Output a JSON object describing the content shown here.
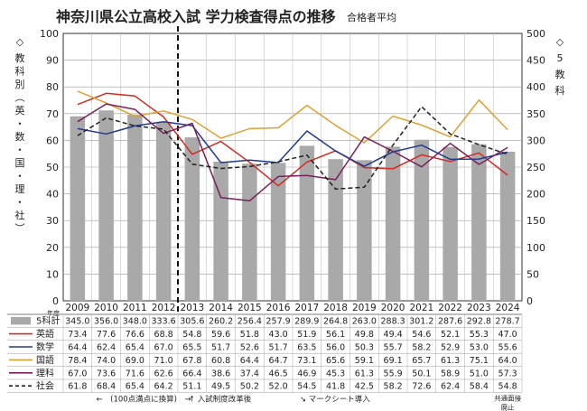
{
  "chart_data": {
    "type": "bar+line",
    "title": "神奈川県公立高校入試 学力検査得点の推移",
    "subtitle": "合格者平均",
    "left_axis_marker": "◇",
    "left_axis_label": [
      "教",
      "科",
      "別",
      "︵",
      "英",
      "・",
      "数",
      "・",
      "国",
      "・",
      "理",
      "・",
      "社",
      "︶"
    ],
    "right_axis_marker": "◇",
    "right_axis_label": [
      "5",
      "教",
      "科"
    ],
    "ylim_left": [
      0,
      100
    ],
    "yticks_left": [
      "0",
      "10",
      "20",
      "30",
      "40",
      "50",
      "60",
      "70",
      "80",
      "90",
      "100"
    ],
    "ylim_right": [
      0,
      500
    ],
    "yticks_right": [
      "0",
      "50",
      "100",
      "150",
      "200",
      "250",
      "300",
      "350",
      "400",
      "450",
      "500"
    ],
    "year_label": "年度",
    "categories": [
      "2009",
      "2010",
      "2011",
      "2012",
      "2013",
      "2014",
      "2015",
      "2016",
      "2017",
      "2018",
      "2019",
      "2020",
      "2021",
      "2022",
      "2023",
      "2024"
    ],
    "bars": {
      "name": "5科計",
      "values": [
        345.0,
        356.0,
        348.0,
        333.6,
        305.6,
        260.2,
        256.4,
        257.9,
        289.9,
        264.8,
        263.0,
        288.3,
        301.2,
        287.6,
        292.8,
        278.7
      ],
      "color": "#a9a9a9"
    },
    "bar_value_labels": [
      "345.0",
      "356.0",
      "348.0",
      "333.6",
      "305.6",
      "260.2",
      "256.4",
      "257.9",
      "289.9",
      "264.8",
      "263.0",
      "288.3",
      "301.2",
      "287.6",
      "292.8",
      "278.7"
    ],
    "series": [
      {
        "name": "英語",
        "color": "#d42a1f",
        "dash": false,
        "values": [
          73.4,
          77.6,
          76.6,
          68.8,
          54.8,
          59.6,
          51.8,
          43.0,
          51.9,
          56.1,
          49.8,
          49.4,
          54.6,
          52.1,
          55.3,
          47.0
        ],
        "labels": [
          "73.4",
          "77.6",
          "76.6",
          "68.8",
          "54.8",
          "59.6",
          "51.8",
          "43.0",
          "51.9",
          "56.1",
          "49.8",
          "49.4",
          "54.6",
          "52.1",
          "55.3",
          "47.0"
        ]
      },
      {
        "name": "数学",
        "color": "#1f3a93",
        "dash": false,
        "values": [
          64.4,
          62.4,
          65.4,
          67.0,
          65.5,
          51.7,
          52.6,
          51.7,
          63.5,
          56.0,
          50.3,
          55.7,
          58.2,
          52.9,
          53.0,
          55.6
        ],
        "labels": [
          "64.4",
          "62.4",
          "65.4",
          "67.0",
          "65.5",
          "51.7",
          "52.6",
          "51.7",
          "63.5",
          "56.0",
          "50.3",
          "55.7",
          "58.2",
          "52.9",
          "53.0",
          "55.6"
        ]
      },
      {
        "name": "国語",
        "color": "#e0a030",
        "dash": false,
        "values": [
          78.4,
          74.0,
          69.0,
          71.0,
          67.8,
          60.8,
          64.4,
          64.7,
          73.1,
          65.6,
          59.1,
          69.1,
          65.7,
          61.3,
          75.1,
          64.0
        ],
        "labels": [
          "78.4",
          "74.0",
          "69.0",
          "71.0",
          "67.8",
          "60.8",
          "64.4",
          "64.7",
          "73.1",
          "65.6",
          "59.1",
          "69.1",
          "65.7",
          "61.3",
          "75.1",
          "64.0"
        ]
      },
      {
        "name": "理科",
        "color": "#7a1f5c",
        "dash": false,
        "values": [
          67.0,
          73.6,
          71.6,
          62.6,
          66.4,
          38.6,
          37.4,
          46.5,
          46.9,
          45.3,
          61.3,
          55.9,
          50.1,
          58.9,
          51.0,
          57.3
        ],
        "labels": [
          "67.0",
          "73.6",
          "71.6",
          "62.6",
          "66.4",
          "38.6",
          "37.4",
          "46.5",
          "46.9",
          "45.3",
          "61.3",
          "55.9",
          "50.1",
          "58.9",
          "51.0",
          "57.3"
        ]
      },
      {
        "name": "社会",
        "color": "#222222",
        "dash": true,
        "values": [
          61.8,
          68.4,
          65.4,
          64.2,
          51.1,
          49.5,
          50.2,
          52.0,
          54.5,
          41.8,
          42.5,
          58.2,
          72.6,
          62.4,
          58.4,
          54.8
        ],
        "labels": [
          "61.8",
          "68.4",
          "65.4",
          "64.2",
          "51.1",
          "49.5",
          "50.2",
          "52.0",
          "54.5",
          "41.8",
          "42.5",
          "58.2",
          "72.6",
          "62.4",
          "58.4",
          "54.8"
        ]
      }
    ],
    "annotations": [
      {
        "text": "←　(100点満点に換算)　→",
        "after_category": "2009"
      },
      {
        "text": "↑ 入試制度改革後",
        "after_category": "2013"
      },
      {
        "text": "↘ マークシート導入",
        "after_category": "2017"
      },
      {
        "text": "共通面接",
        "after_category": "2024"
      },
      {
        "text": "廃止",
        "after_category": "2024"
      }
    ],
    "vertical_marker": {
      "between": [
        "2012",
        "2013"
      ],
      "style": "dashed"
    },
    "grid": true
  }
}
